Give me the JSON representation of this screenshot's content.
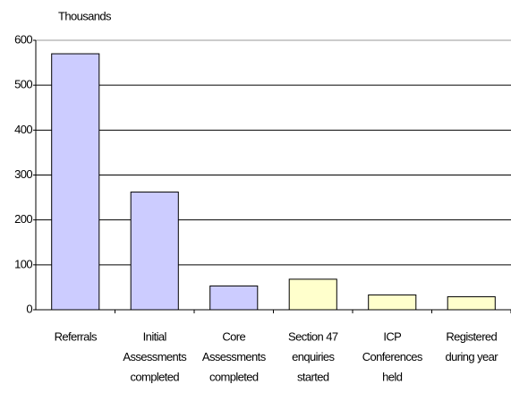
{
  "chart_data": {
    "type": "bar",
    "y_axis_label": "Thousands",
    "categories": [
      [
        "Referrals"
      ],
      [
        "Initial",
        "Assessments",
        "completed"
      ],
      [
        "Core",
        "Assessments",
        "completed"
      ],
      [
        "Section 47",
        "enquiries",
        "started"
      ],
      [
        "ICP",
        "Conferences",
        "held"
      ],
      [
        "Registered",
        "during year"
      ]
    ],
    "values": [
      570,
      262,
      53,
      68,
      33,
      29
    ],
    "colors": [
      "#ccccff",
      "#ccccff",
      "#ccccff",
      "#ffffcc",
      "#ffffcc",
      "#ffffcc"
    ],
    "ylim": [
      0,
      600
    ],
    "yticks": [
      0,
      100,
      200,
      300,
      400,
      500,
      600
    ],
    "grid": true
  }
}
